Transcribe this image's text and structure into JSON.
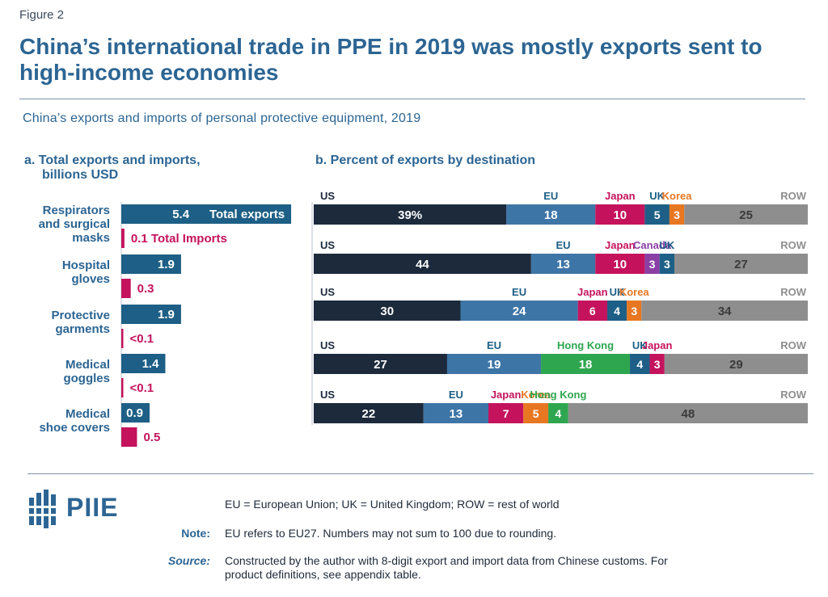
{
  "header": {
    "figure_label": "Figure 2",
    "title": "China’s international trade in PPE in 2019 was mostly exports sent to high-income economies",
    "subtitle": "China’s exports and imports of personal protective equipment, 2019"
  },
  "panel_a": {
    "title_line1": "a. Total exports and imports,",
    "title_line2": "billions USD"
  },
  "panel_b": {
    "title": "b. Percent of exports by destination"
  },
  "colors": {
    "exports": "#1d5f86",
    "imports": "#c4135c",
    "US": "#1c2a3c",
    "EU": "#3e75a7",
    "Japan": "#c4135c",
    "UK": "#1d5f86",
    "Korea": "#e87722",
    "Canada": "#8a3fa5",
    "Hong Kong": "#2ea64f",
    "ROW": "#8e8e8e",
    "title": "#2c6593"
  },
  "chart_data": [
    {
      "type": "bar",
      "orientation": "horizontal",
      "title": "a. Total exports and imports, billions USD",
      "categories": [
        "Respirators and surgical masks",
        "Hospital gloves",
        "Protective garments",
        "Medical goggles",
        "Medical shoe covers"
      ],
      "category_lines": [
        [
          "Respirators",
          "and surgical",
          "masks"
        ],
        [
          "Hospital",
          "gloves"
        ],
        [
          "Protective",
          "garments"
        ],
        [
          "Medical",
          "goggles"
        ],
        [
          "Medical",
          "shoe covers"
        ]
      ],
      "series": [
        {
          "name": "Total exports",
          "values": [
            5.4,
            1.9,
            1.9,
            1.4,
            0.9
          ],
          "labels": [
            "5.4",
            "1.9",
            "1.9",
            "1.4",
            "0.9"
          ]
        },
        {
          "name": "Total Imports",
          "values": [
            0.1,
            0.3,
            0.05,
            0.05,
            0.5
          ],
          "labels": [
            "0.1",
            "0.3",
            "<0.1",
            "<0.1",
            "0.5"
          ]
        }
      ],
      "series_label_exports": "Total exports",
      "series_label_imports": "Total Imports"
    },
    {
      "type": "bar",
      "orientation": "horizontal",
      "stacked": true,
      "title": "b. Percent of exports by destination",
      "units": "percent",
      "rows": [
        {
          "segments": [
            {
              "name": "US",
              "value": 39,
              "label": "39%"
            },
            {
              "name": "EU",
              "value": 18,
              "label": "18"
            },
            {
              "name": "Japan",
              "value": 10,
              "label": "10"
            },
            {
              "name": "UK",
              "value": 5,
              "label": "5"
            },
            {
              "name": "Korea",
              "value": 3,
              "label": "3"
            },
            {
              "name": "ROW",
              "value": 25,
              "label": "25"
            }
          ]
        },
        {
          "segments": [
            {
              "name": "US",
              "value": 44,
              "label": "44"
            },
            {
              "name": "EU",
              "value": 13,
              "label": "13"
            },
            {
              "name": "Japan",
              "value": 10,
              "label": "10"
            },
            {
              "name": "Canada",
              "value": 3,
              "label": "3"
            },
            {
              "name": "UK",
              "value": 3,
              "label": "3"
            },
            {
              "name": "ROW",
              "value": 27,
              "label": "27"
            }
          ]
        },
        {
          "segments": [
            {
              "name": "US",
              "value": 30,
              "label": "30"
            },
            {
              "name": "EU",
              "value": 24,
              "label": "24"
            },
            {
              "name": "Japan",
              "value": 6,
              "label": "6"
            },
            {
              "name": "UK",
              "value": 4,
              "label": "4"
            },
            {
              "name": "Korea",
              "value": 3,
              "label": "3"
            },
            {
              "name": "ROW",
              "value": 34,
              "label": "34"
            }
          ]
        },
        {
          "segments": [
            {
              "name": "US",
              "value": 27,
              "label": "27"
            },
            {
              "name": "EU",
              "value": 19,
              "label": "19"
            },
            {
              "name": "Hong Kong",
              "value": 18,
              "label": "18"
            },
            {
              "name": "UK",
              "value": 4,
              "label": "4"
            },
            {
              "name": "Japan",
              "value": 3,
              "label": "3"
            },
            {
              "name": "ROW",
              "value": 29,
              "label": "29"
            }
          ]
        },
        {
          "segments": [
            {
              "name": "US",
              "value": 22,
              "label": "22"
            },
            {
              "name": "EU",
              "value": 13,
              "label": "13"
            },
            {
              "name": "Japan",
              "value": 7,
              "label": "7"
            },
            {
              "name": "Korea",
              "value": 5,
              "label": "5"
            },
            {
              "name": "Hong Kong",
              "value": 4,
              "label": "4"
            },
            {
              "name": "ROW",
              "value": 48,
              "label": "48"
            }
          ]
        }
      ]
    }
  ],
  "footer": {
    "abbrev": "EU = European Union; UK = United Kingdom; ROW = rest of world",
    "note_key": "Note:",
    "note": "EU refers to EU27. Numbers may not sum to 100 due to rounding.",
    "source_key": "Source:",
    "source_line1": "Constructed by the author with 8-digit export and import data from Chinese customs. For",
    "source_line2": "product definitions, see appendix table.",
    "logo_text": "PIIE"
  }
}
